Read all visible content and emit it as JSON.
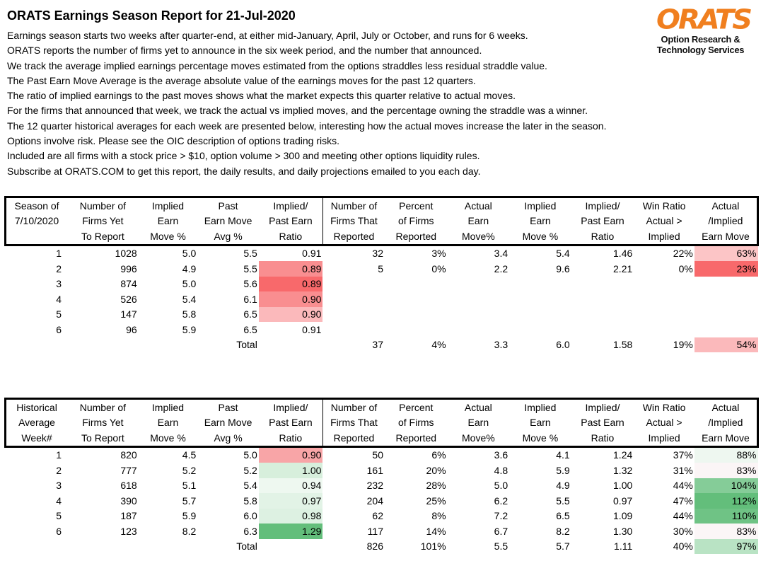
{
  "title": "ORATS Earnings Season Report for 21-Jul-2020",
  "intro": [
    "Earnings season starts two weeks after quarter-end, at either mid-January, April, July or October, and runs for 6 weeks.",
    "ORATS reports the number of firms yet to announce in the six week period, and the number that announced.",
    "We track the average implied earnings percentage moves estimated from the options straddles less residual straddle value.",
    "The Past Earn Move Average is the average absolute value of the earnings moves for the past 12 quarters.",
    "The ratio of implied earnings to the past moves shows what the market expects this quarter relative to actual moves.",
    "For the firms that announced that week, we track the actual vs implied moves, and the percentage owning the straddle was a winner.",
    "The 12 quarter historical averages for each week are presented below, interesting how the actual moves increase the later in the season.",
    "Options involve risk. Please see the OIC description of options trading risks.",
    "Included are all firms with a stock price > $10, option volume > 300 and meeting other options liquidity rules.",
    "Subscribe at ORATS.COM to get this report, the daily results, and daily projections emailed to you each day."
  ],
  "logo": {
    "mark": "ORATS",
    "line1": "Option Research &",
    "line2": "Technology Services",
    "color": "#f07f1f"
  },
  "colors": {
    "red_strong": "#f8696b",
    "red_mid": "#f98e90",
    "red_light": "#fbb9bb",
    "red_faint": "#fcd3d4",
    "green_strong": "#63be7b",
    "green_mid": "#85cc98",
    "green_light": "#c6e9cf",
    "green_faint": "#e8f5eb",
    "white": "#ffffff"
  },
  "table1": {
    "headers": [
      [
        "Season of",
        "Number of",
        "Implied",
        "Past",
        "Implied/",
        "Number of",
        "Percent",
        "Actual",
        "Implied",
        "Implied/",
        "Win Ratio",
        "Actual"
      ],
      [
        "7/10/2020",
        "Firms Yet",
        "Earn",
        "Earn Move",
        "Past Earn",
        "Firms That",
        "of Firms",
        "Earn",
        "Earn",
        "Past Earn",
        "Actual >",
        "/Implied"
      ],
      [
        "",
        "To Report",
        "Move %",
        "Avg %",
        "Ratio",
        "Reported",
        "Reported",
        "Move%",
        "Move %",
        "Ratio",
        "Implied",
        "Earn Move"
      ]
    ],
    "rows": [
      [
        "1",
        "1028",
        "5.0",
        "5.5",
        "0.91",
        "32",
        "3%",
        "3.4",
        "5.4",
        "1.46",
        "22%",
        "63%"
      ],
      [
        "2",
        "996",
        "4.9",
        "5.5",
        "0.89",
        "5",
        "0%",
        "2.2",
        "9.6",
        "2.21",
        "0%",
        "23%"
      ],
      [
        "3",
        "874",
        "5.0",
        "5.6",
        "0.89",
        "",
        "",
        "",
        "",
        "",
        "",
        ""
      ],
      [
        "4",
        "526",
        "5.4",
        "6.1",
        "0.90",
        "",
        "",
        "",
        "",
        "",
        "",
        ""
      ],
      [
        "5",
        "147",
        "5.8",
        "6.5",
        "0.90",
        "",
        "",
        "",
        "",
        "",
        "",
        ""
      ],
      [
        "6",
        "96",
        "5.9",
        "6.5",
        "0.91",
        "",
        "",
        "",
        "",
        "",
        "",
        ""
      ],
      [
        "",
        "",
        "",
        "Total",
        "",
        "37",
        "4%",
        "3.3",
        "6.0",
        "1.58",
        "19%",
        "54%"
      ]
    ],
    "ratio_fill": [
      "#ffffff",
      "#f98e90",
      "#f8696b",
      "#f98e90",
      "#fbb9bb",
      "#ffffff",
      "#ffffff"
    ],
    "move_fill": [
      "#fcc5c6",
      "#f8696b",
      "#ffffff",
      "#ffffff",
      "#ffffff",
      "#ffffff",
      "#fbb9bb"
    ]
  },
  "table2": {
    "headers": [
      [
        "Historical",
        "Number of",
        "Implied",
        "Past",
        "Implied/",
        "Number of",
        "Percent",
        "Actual",
        "Implied",
        "Implied/",
        "Win Ratio",
        "Actual"
      ],
      [
        "Average",
        "Firms Yet",
        "Earn",
        "Earn Move",
        "Past Earn",
        "Firms That",
        "of Firms",
        "Earn",
        "Earn",
        "Past Earn",
        "Actual >",
        "/Implied"
      ],
      [
        "Week#",
        "To Report",
        "Move %",
        "Avg %",
        "Ratio",
        "Reported",
        "Reported",
        "Move%",
        "Move %",
        "Ratio",
        "Implied",
        "Earn Move"
      ]
    ],
    "rows": [
      [
        "1",
        "820",
        "4.5",
        "5.0",
        "0.90",
        "50",
        "6%",
        "3.6",
        "4.1",
        "1.24",
        "37%",
        "88%"
      ],
      [
        "2",
        "777",
        "5.2",
        "5.2",
        "1.00",
        "161",
        "20%",
        "4.8",
        "5.9",
        "1.32",
        "31%",
        "83%"
      ],
      [
        "3",
        "618",
        "5.1",
        "5.4",
        "0.94",
        "232",
        "28%",
        "5.0",
        "4.9",
        "1.00",
        "44%",
        "104%"
      ],
      [
        "4",
        "390",
        "5.7",
        "5.8",
        "0.97",
        "204",
        "25%",
        "6.2",
        "5.5",
        "0.97",
        "47%",
        "112%"
      ],
      [
        "5",
        "187",
        "5.9",
        "6.0",
        "0.98",
        "62",
        "8%",
        "7.2",
        "6.5",
        "1.09",
        "44%",
        "110%"
      ],
      [
        "6",
        "123",
        "8.2",
        "6.3",
        "1.29",
        "117",
        "14%",
        "6.7",
        "8.2",
        "1.30",
        "30%",
        "83%"
      ],
      [
        "",
        "",
        "",
        "Total",
        "",
        "826",
        "101%",
        "5.5",
        "5.7",
        "1.11",
        "40%",
        "97%"
      ]
    ],
    "ratio_fill": [
      "#f8a5a7",
      "#d7efdc",
      "#eef8f0",
      "#e2f3e6",
      "#ddf1e2",
      "#63be7b",
      "#ffffff"
    ],
    "move_fill": [
      "#eef7f0",
      "#fbf5f6",
      "#85cc98",
      "#63be7b",
      "#6fc385",
      "#fbf6f7",
      "#b9e3c4"
    ]
  }
}
